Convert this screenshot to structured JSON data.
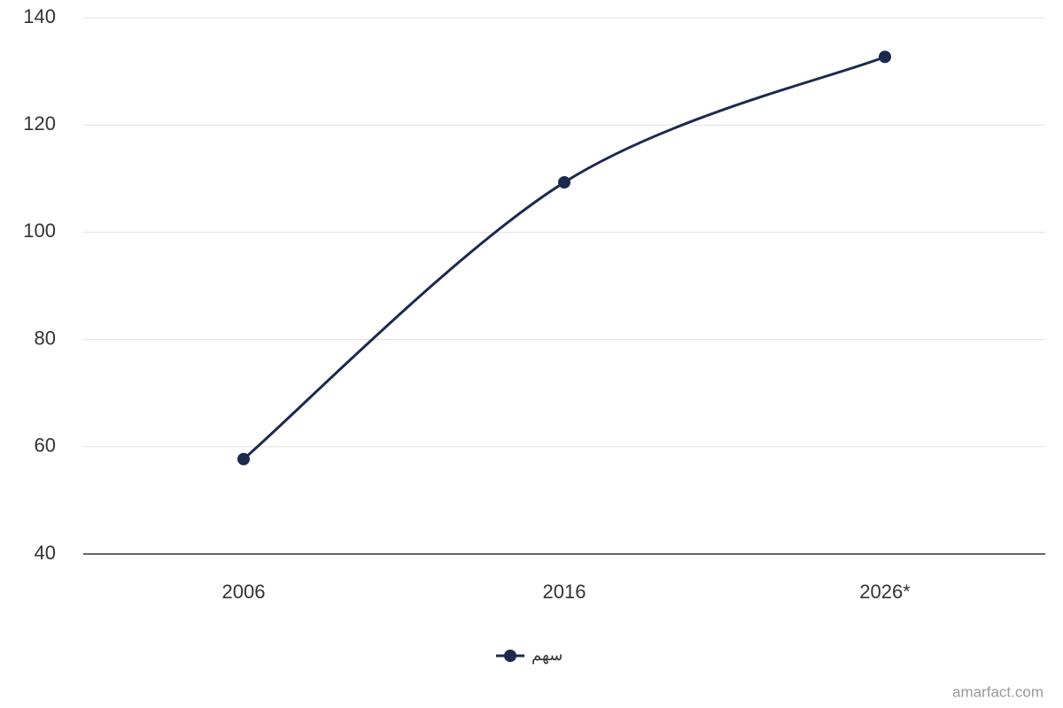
{
  "chart_data": {
    "type": "line",
    "categories": [
      "2006",
      "2016",
      "2026*"
    ],
    "series": [
      {
        "name": "سهم",
        "color": "#1b2a4e",
        "values": [
          57.7,
          109.3,
          132.7
        ]
      }
    ],
    "ylim": [
      40,
      140
    ],
    "yticks": [
      40,
      60,
      80,
      100,
      120,
      140
    ],
    "grid": true,
    "legend": "bottom",
    "credit": "amarfact.com"
  }
}
